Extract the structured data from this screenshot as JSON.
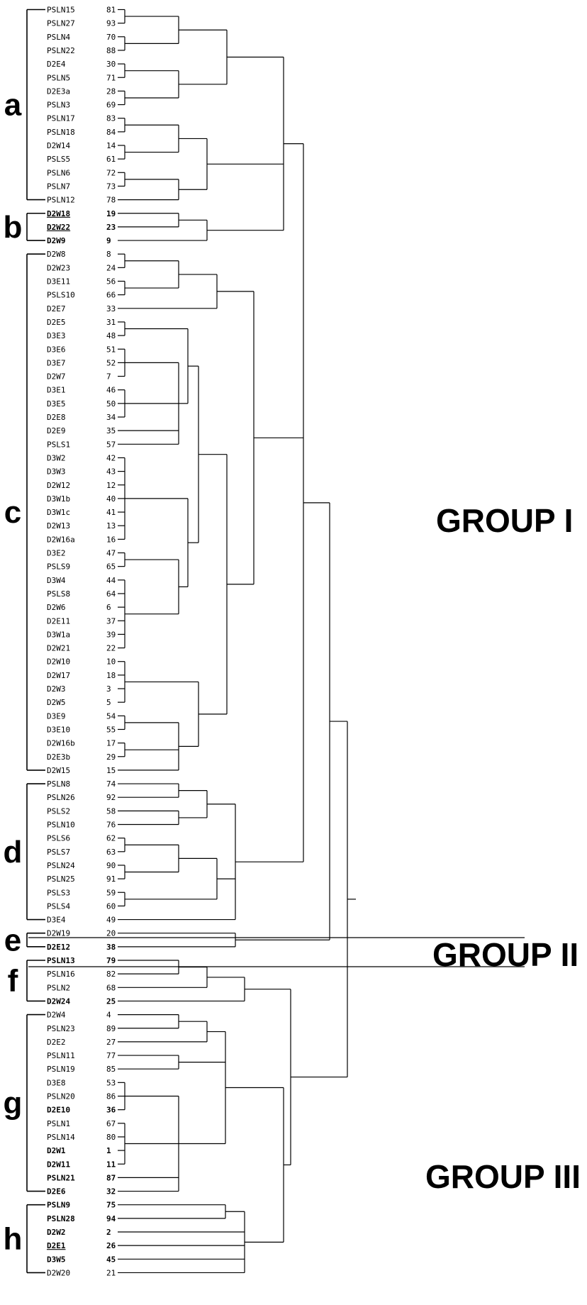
{
  "leaves": [
    {
      "name": "PSLN15",
      "id": "81"
    },
    {
      "name": "PSLN27",
      "id": "93"
    },
    {
      "name": "PSLN4",
      "id": "70"
    },
    {
      "name": "PSLN22",
      "id": "88"
    },
    {
      "name": "D2E4",
      "id": "30"
    },
    {
      "name": "PSLN5",
      "id": "71"
    },
    {
      "name": "D2E3a",
      "id": "28"
    },
    {
      "name": "PSLN3",
      "id": "69"
    },
    {
      "name": "PSLN17",
      "id": "83"
    },
    {
      "name": "PSLN18",
      "id": "84"
    },
    {
      "name": "D2W14",
      "id": "14"
    },
    {
      "name": "PSLS5",
      "id": "61"
    },
    {
      "name": "PSLN6",
      "id": "72"
    },
    {
      "name": "PSLN7",
      "id": "73"
    },
    {
      "name": "PSLN12",
      "id": "78"
    },
    {
      "name": "D2W18",
      "id": "19",
      "bold": true,
      "underline": true
    },
    {
      "name": "D2W22",
      "id": "23",
      "bold": true,
      "underline": true
    },
    {
      "name": "D2W9",
      "id": "9",
      "bold": true
    },
    {
      "name": "D2W8",
      "id": "8"
    },
    {
      "name": "D2W23",
      "id": "24"
    },
    {
      "name": "D3E11",
      "id": "56"
    },
    {
      "name": "PSLS10",
      "id": "66"
    },
    {
      "name": "D2E7",
      "id": "33"
    },
    {
      "name": "D2E5",
      "id": "31"
    },
    {
      "name": "D3E3",
      "id": "48"
    },
    {
      "name": "D3E6",
      "id": "51"
    },
    {
      "name": "D3E7",
      "id": "52"
    },
    {
      "name": "D2W7",
      "id": "7"
    },
    {
      "name": "D3E1",
      "id": "46"
    },
    {
      "name": "D3E5",
      "id": "50"
    },
    {
      "name": "D2E8",
      "id": "34"
    },
    {
      "name": "D2E9",
      "id": "35"
    },
    {
      "name": "PSLS1",
      "id": "57"
    },
    {
      "name": "D3W2",
      "id": "42"
    },
    {
      "name": "D3W3",
      "id": "43"
    },
    {
      "name": "D2W12",
      "id": "12"
    },
    {
      "name": "D3W1b",
      "id": "40"
    },
    {
      "name": "D3W1c",
      "id": "41"
    },
    {
      "name": "D2W13",
      "id": "13"
    },
    {
      "name": "D2W16a",
      "id": "16"
    },
    {
      "name": "D3E2",
      "id": "47"
    },
    {
      "name": "PSLS9",
      "id": "65"
    },
    {
      "name": "D3W4",
      "id": "44"
    },
    {
      "name": "PSLS8",
      "id": "64"
    },
    {
      "name": "D2W6",
      "id": "6"
    },
    {
      "name": "D2E11",
      "id": "37"
    },
    {
      "name": "D3W1a",
      "id": "39"
    },
    {
      "name": "D2W21",
      "id": "22"
    },
    {
      "name": "D2W10",
      "id": "10"
    },
    {
      "name": "D2W17",
      "id": "18"
    },
    {
      "name": "D2W3",
      "id": "3"
    },
    {
      "name": "D2W5",
      "id": "5"
    },
    {
      "name": "D3E9",
      "id": "54"
    },
    {
      "name": "D3E10",
      "id": "55"
    },
    {
      "name": "D2W16b",
      "id": "17"
    },
    {
      "name": "D2E3b",
      "id": "29"
    },
    {
      "name": "D2W15",
      "id": "15"
    },
    {
      "name": "PSLN8",
      "id": "74"
    },
    {
      "name": "PSLN26",
      "id": "92"
    },
    {
      "name": "PSLS2",
      "id": "58"
    },
    {
      "name": "PSLN10",
      "id": "76"
    },
    {
      "name": "PSLS6",
      "id": "62"
    },
    {
      "name": "PSLS7",
      "id": "63"
    },
    {
      "name": "PSLN24",
      "id": "90"
    },
    {
      "name": "PSLN25",
      "id": "91"
    },
    {
      "name": "PSLS3",
      "id": "59"
    },
    {
      "name": "PSLS4",
      "id": "60"
    },
    {
      "name": "D3E4",
      "id": "49"
    },
    {
      "name": "D2W19",
      "id": "20"
    },
    {
      "name": "D2E12",
      "id": "38",
      "bold": true
    },
    {
      "name": "PSLN13",
      "id": "79",
      "bold": true
    },
    {
      "name": "PSLN16",
      "id": "82"
    },
    {
      "name": "PSLN2",
      "id": "68"
    },
    {
      "name": "D2W24",
      "id": "25",
      "bold": true
    },
    {
      "name": "D2W4",
      "id": "4"
    },
    {
      "name": "PSLN23",
      "id": "89"
    },
    {
      "name": "D2E2",
      "id": "27"
    },
    {
      "name": "PSLN11",
      "id": "77"
    },
    {
      "name": "PSLN19",
      "id": "85"
    },
    {
      "name": "D3E8",
      "id": "53"
    },
    {
      "name": "PSLN20",
      "id": "86"
    },
    {
      "name": "D2E10",
      "id": "36",
      "bold": true
    },
    {
      "name": "PSLN1",
      "id": "67"
    },
    {
      "name": "PSLN14",
      "id": "80"
    },
    {
      "name": "D2W1",
      "id": "1",
      "bold": true
    },
    {
      "name": "D2W11",
      "id": "11",
      "bold": true
    },
    {
      "name": "PSLN21",
      "id": "87",
      "bold": true
    },
    {
      "name": "D2E6",
      "id": "32",
      "bold": true
    },
    {
      "name": "PSLN9",
      "id": "75",
      "bold": true
    },
    {
      "name": "PSLN28",
      "id": "94",
      "bold": true
    },
    {
      "name": "D2W2",
      "id": "2",
      "bold": true
    },
    {
      "name": "D2E1",
      "id": "26",
      "bold": true,
      "underline": true
    },
    {
      "name": "D3W5",
      "id": "45",
      "bold": true
    },
    {
      "name": "D2W20",
      "id": "21"
    }
  ],
  "clusters": [
    {
      "letter": "a",
      "first_leaf": 0,
      "last_leaf": 14
    },
    {
      "letter": "b",
      "first_leaf": 15,
      "last_leaf": 17
    },
    {
      "letter": "c",
      "first_leaf": 18,
      "last_leaf": 56
    },
    {
      "letter": "d",
      "first_leaf": 57,
      "last_leaf": 67
    },
    {
      "letter": "e",
      "first_leaf": 68,
      "last_leaf": 69
    },
    {
      "letter": "f",
      "first_leaf": 70,
      "last_leaf": 73
    },
    {
      "letter": "g",
      "first_leaf": 74,
      "last_leaf": 87
    },
    {
      "letter": "h",
      "first_leaf": 88,
      "last_leaf": 93
    }
  ],
  "groups": [
    {
      "label": "GROUP I"
    },
    {
      "label": "GROUP II"
    },
    {
      "label": "GROUP III"
    }
  ],
  "line_color": "#000000"
}
